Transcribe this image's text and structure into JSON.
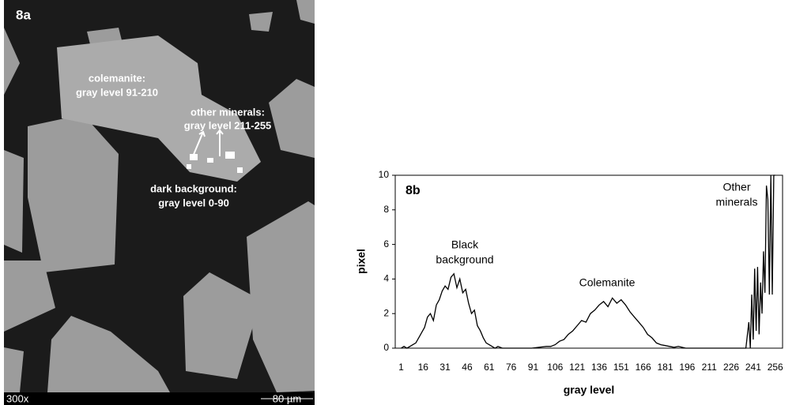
{
  "image": {
    "panel_label": "8a",
    "labels": [
      [
        "colemanite:",
        "gray level 91-210"
      ],
      [
        "other minerals:",
        "gray level 211-255"
      ],
      [
        "dark background:",
        "gray level 0-90"
      ]
    ],
    "magnification": "300x",
    "scale_bar": "80 µm"
  },
  "chart_data": {
    "type": "line",
    "panel_label": "8b",
    "x_label": "gray level",
    "y_label": "pixel",
    "annotations": [
      [
        "Black",
        "background"
      ],
      [
        "Colemanite"
      ],
      [
        "Other",
        "minerals"
      ]
    ],
    "color": "#000000",
    "grid": false,
    "xlim": [
      -3,
      261
    ],
    "xticks": [
      1,
      16,
      31,
      46,
      61,
      76,
      91,
      106,
      121,
      136,
      151,
      166,
      181,
      196,
      211,
      226,
      241,
      256
    ],
    "ylim": [
      0,
      10
    ],
    "yticks": [
      0,
      2,
      4,
      6,
      8,
      10
    ],
    "x": [
      1,
      3,
      5,
      7,
      9,
      11,
      13,
      15,
      17,
      19,
      21,
      23,
      25,
      27,
      29,
      31,
      33,
      35,
      37,
      39,
      41,
      43,
      45,
      47,
      49,
      51,
      53,
      55,
      57,
      59,
      61,
      63,
      65,
      67,
      70,
      80,
      90,
      95,
      100,
      103,
      106,
      109,
      112,
      115,
      118,
      121,
      124,
      127,
      130,
      133,
      136,
      139,
      142,
      145,
      148,
      151,
      154,
      157,
      160,
      163,
      166,
      169,
      172,
      175,
      178,
      181,
      184,
      187,
      190,
      195,
      200,
      210,
      220,
      230,
      236,
      238,
      239,
      240,
      241,
      242,
      243,
      244,
      245,
      246,
      247,
      248,
      249,
      250,
      251,
      252,
      253,
      254,
      255,
      256
    ],
    "values": [
      0,
      0.1,
      0,
      0.1,
      0.2,
      0.3,
      0.6,
      0.9,
      1.2,
      1.8,
      2.0,
      1.6,
      2.5,
      2.8,
      3.3,
      3.6,
      3.4,
      4.1,
      4.3,
      3.5,
      4.0,
      3.2,
      3.4,
      2.6,
      2.0,
      2.2,
      1.3,
      1.0,
      0.6,
      0.3,
      0.2,
      0.1,
      0,
      0.1,
      0,
      0,
      0,
      0.05,
      0.1,
      0.1,
      0.2,
      0.4,
      0.5,
      0.8,
      1.0,
      1.3,
      1.6,
      1.5,
      2.0,
      2.2,
      2.5,
      2.7,
      2.4,
      2.9,
      2.6,
      2.8,
      2.5,
      2.1,
      1.8,
      1.5,
      1.2,
      0.8,
      0.6,
      0.3,
      0.2,
      0.15,
      0.1,
      0.05,
      0.1,
      0,
      0,
      0,
      0,
      0,
      0,
      1.5,
      0,
      3.1,
      0.5,
      4.6,
      1.0,
      4.7,
      0.8,
      3.8,
      2.0,
      5.6,
      3.2,
      9.4,
      8.6,
      3.1,
      10,
      3.1,
      10,
      10
    ]
  }
}
